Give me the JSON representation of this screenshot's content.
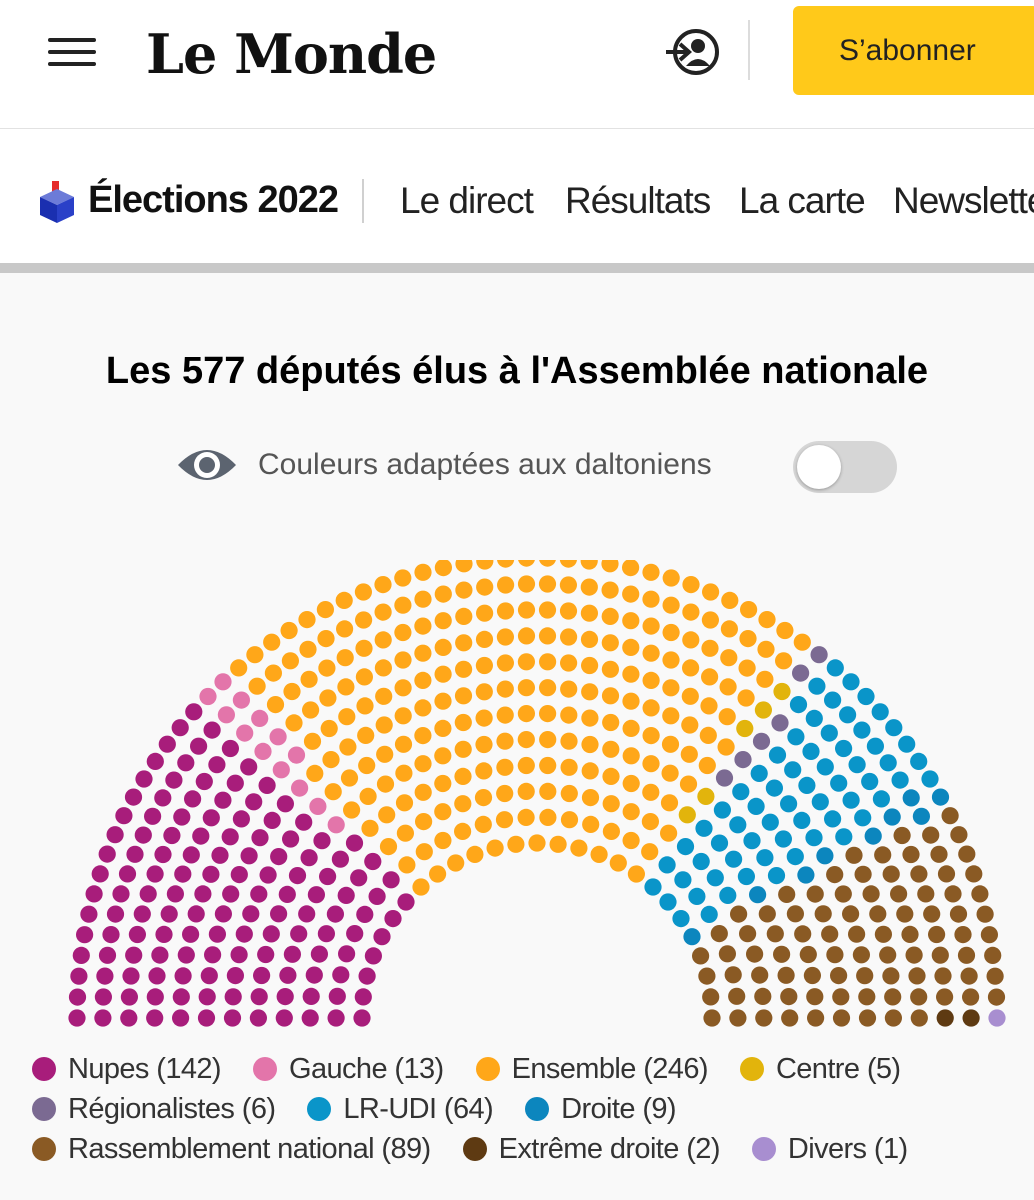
{
  "header": {
    "logo_text": "Le Monde",
    "subscribe_label": "S’abonner",
    "menu_icon": "hamburger-menu-icon",
    "login_icon": "login-user-icon"
  },
  "nav": {
    "section_title": "Élections 2022",
    "section_icon": "ballot-box-icon",
    "links": [
      {
        "label": "Le direct"
      },
      {
        "label": "Résultats"
      },
      {
        "label": "La carte"
      },
      {
        "label": "Newsletter"
      }
    ]
  },
  "content": {
    "title": "Les 577 députés élus à l'Assemblée nationale",
    "colorblind_label": "Couleurs adaptées aux daltoniens",
    "colorblind_enabled": false,
    "eye_icon": "eye-icon"
  },
  "chart_data": {
    "type": "hemicycle",
    "total_seats": 577,
    "series": [
      {
        "name": "Nupes",
        "label": "Nupes (142)",
        "value": 142,
        "color": "#a81d7b"
      },
      {
        "name": "Gauche",
        "label": "Gauche (13)",
        "value": 13,
        "color": "#e375aa"
      },
      {
        "name": "Ensemble",
        "label": "Ensemble (246)",
        "value": 246,
        "color": "#ffa719"
      },
      {
        "name": "Centre",
        "label": "Centre (5)",
        "value": 5,
        "color": "#e2b40c"
      },
      {
        "name": "Régionalistes",
        "label": "Régionalistes (6)",
        "value": 6,
        "color": "#7b6a92"
      },
      {
        "name": "LR-UDI",
        "label": "LR-UDI (64)",
        "value": 64,
        "color": "#0a95c9"
      },
      {
        "name": "Droite",
        "label": "Droite (9)",
        "value": 9,
        "color": "#0c86be"
      },
      {
        "name": "Rassemblement national",
        "label": "Rassemblement national (89)",
        "value": 89,
        "color": "#8a5a24"
      },
      {
        "name": "Extrême droite",
        "label": "Extrême droite (2)",
        "value": 2,
        "color": "#5e3a12"
      },
      {
        "name": "Divers",
        "label": "Divers (1)",
        "value": 1,
        "color": "#a88ed0"
      }
    ]
  }
}
